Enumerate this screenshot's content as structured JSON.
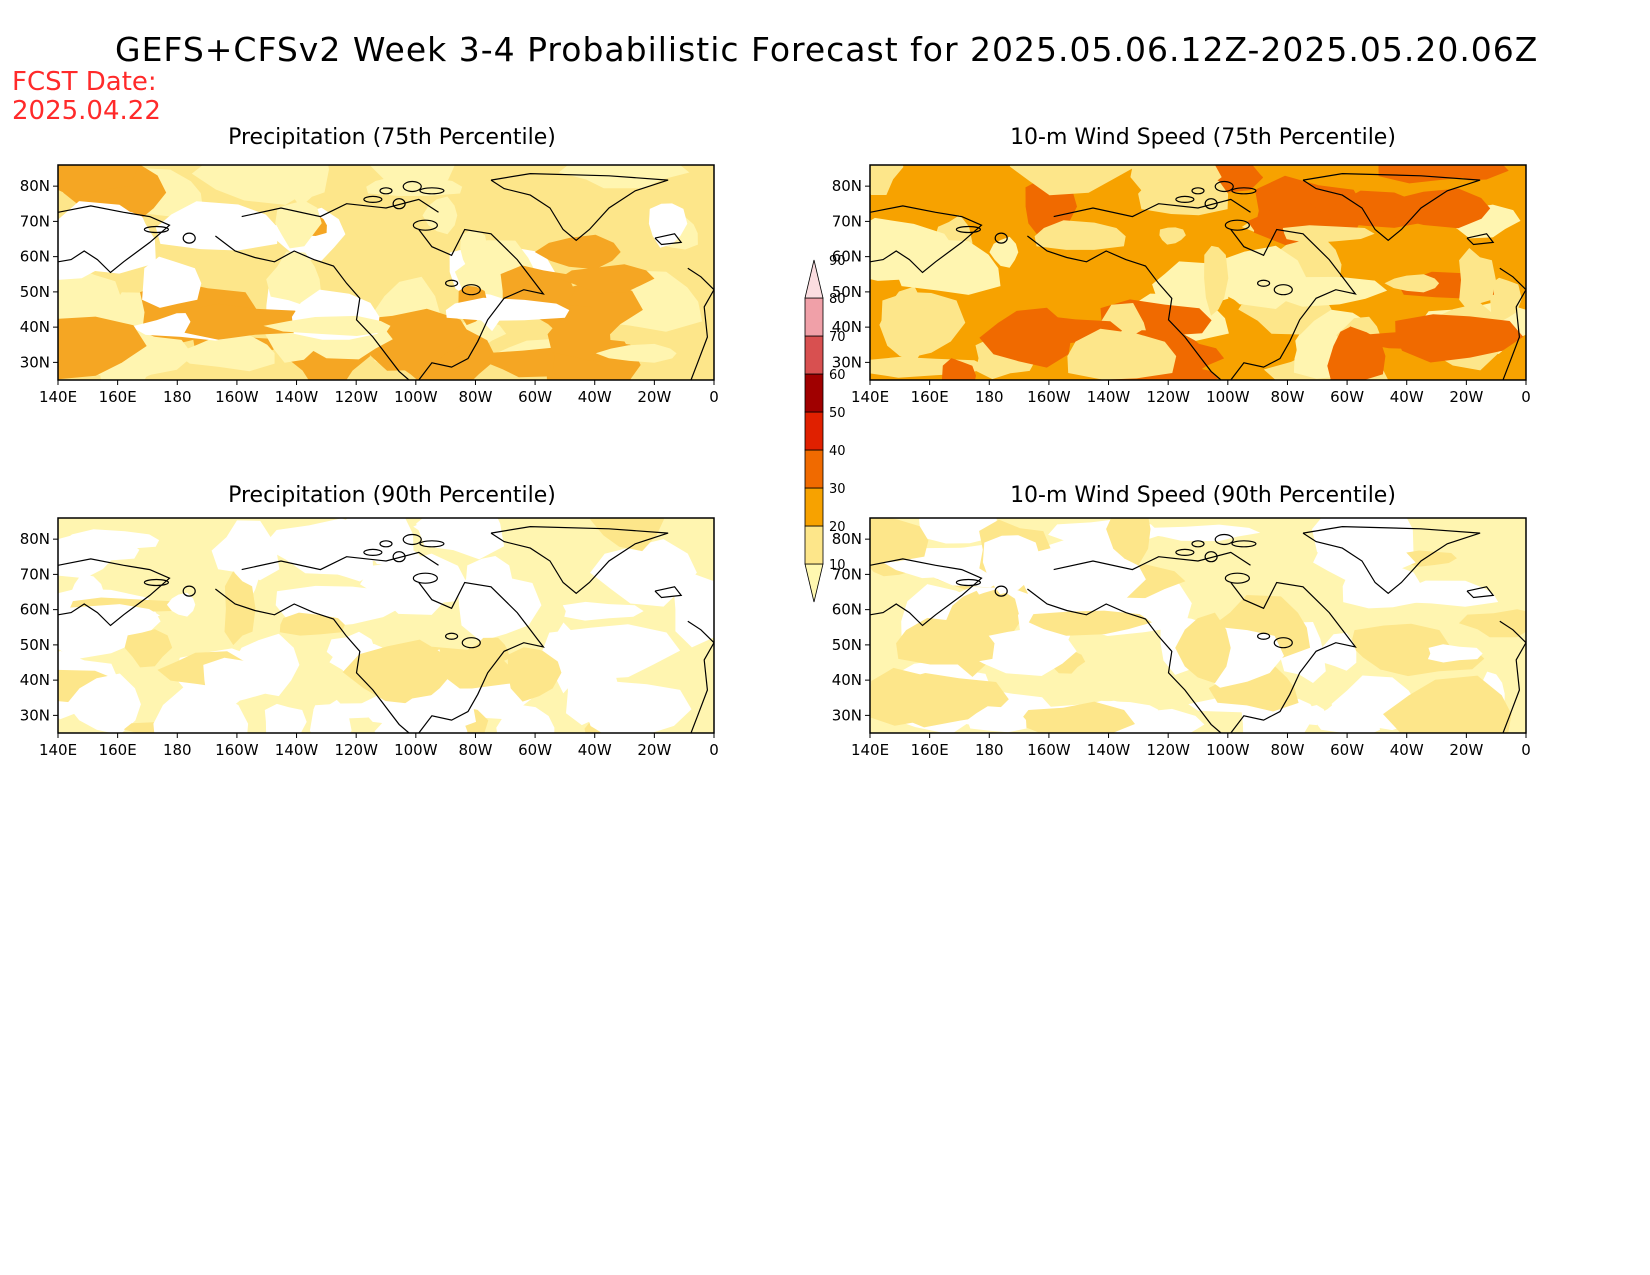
{
  "title": "GEFS+CFSv2 Week 3-4 Probabilistic Forecast for 2025.05.06.12Z-2025.05.20.06Z",
  "fcst_date_label": "FCST Date:",
  "fcst_date_value": "2025.04.22",
  "lon_ticks": [
    "140E",
    "160E",
    "180",
    "160W",
    "140W",
    "120W",
    "100W",
    "80W",
    "60W",
    "40W",
    "20W",
    "0"
  ],
  "lat_ticks": [
    "80N",
    "70N",
    "60N",
    "50N",
    "40N",
    "30N"
  ],
  "colorbar": {
    "levels": [
      "10",
      "20",
      "30",
      "40",
      "50",
      "60",
      "70",
      "80",
      "90"
    ],
    "colors": [
      "#fff8b0",
      "#fde68a",
      "#f7a200",
      "#f06a00",
      "#e02000",
      "#a00000",
      "#d85050",
      "#f0a0a8",
      "#fbdde0"
    ]
  },
  "panels": [
    {
      "title": "Precipitation (75th Percentile)",
      "base": "#fde68a",
      "light": "#fff5b0",
      "dark": "#f5a623",
      "white": "#ffffff"
    },
    {
      "title": "10-m Wind Speed (75th Percentile)",
      "base": "#f7a200",
      "light": "#fde68a",
      "dark": "#f06a00",
      "white": "#fff5b0"
    },
    {
      "title": "Precipitation (90th Percentile)",
      "base": "#fff5b0",
      "light": "#ffffff",
      "dark": "#fde68a",
      "white": "#ffffff"
    },
    {
      "title": "10-m Wind Speed (90th Percentile)",
      "base": "#fff5b0",
      "light": "#ffffff",
      "dark": "#fde68a",
      "white": "#ffffff"
    }
  ]
}
